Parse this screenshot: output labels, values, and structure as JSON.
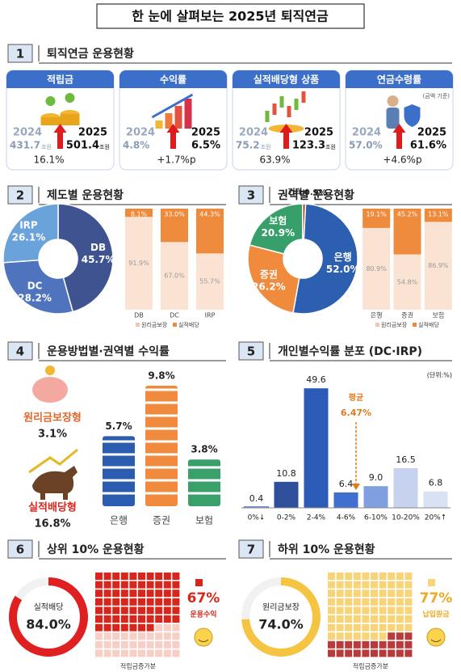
{
  "title": "한 눈에 살펴보는 2025년 퇴직연금",
  "sections": [
    {
      "number": "1",
      "heading": "퇴직연금 운용현황"
    },
    {
      "number": "2",
      "heading": "제도별 운용현황"
    },
    {
      "number": "3",
      "heading": "권역별 운용현황"
    },
    {
      "number": "4",
      "heading": "운용방법별·권역별 수익률"
    },
    {
      "number": "5",
      "heading": "개인별수익률 분포 (DC·IRP)"
    },
    {
      "number": "6",
      "heading": "상위 10% 운용현황"
    },
    {
      "number": "7",
      "heading": "하위 10% 운용현황"
    }
  ],
  "cards": [
    {
      "title": "적립금",
      "year_a": "2024",
      "value_a": "431.7",
      "unit_a": "조원",
      "year_b": "2025",
      "value_b": "501.4",
      "unit_b": "조원",
      "change": "16.1%"
    },
    {
      "title": "수익률",
      "year_a": "2024",
      "value_a": "4.8%",
      "year_b": "2025",
      "value_b": "6.5%",
      "change": "+1.7%p"
    },
    {
      "title": "실적배당형 상품",
      "year_a": "2024",
      "value_a": "75.2",
      "unit_a": "조원",
      "year_b": "2025",
      "value_b": "123.3",
      "unit_b": "조원",
      "change": "63.9%"
    },
    {
      "title": "연금수령률",
      "note": "(금액 기준)",
      "year_a": "2024",
      "value_a": "57.0%",
      "year_b": "2025",
      "value_b": "61.6%",
      "change": "+4.6%p"
    }
  ],
  "chart_data": [
    {
      "type": "pie",
      "categories": [
        "DB",
        "DC",
        "IRP"
      ],
      "values": [
        45.7,
        28.2,
        26.1
      ],
      "value_labels": [
        "45.7%",
        "28.2%",
        "26.1%"
      ],
      "colors": [
        "#3f5391",
        "#4f74bd",
        "#6aa2dc"
      ]
    },
    {
      "type": "stacked_bar",
      "categories": [
        "DB",
        "DC",
        "IRP"
      ],
      "series": [
        {
          "name": "원리금보장",
          "color": "#fbe3d4",
          "values": [
            91.9,
            67.0,
            55.7
          ],
          "value_labels": [
            "91.9%",
            "67.0%",
            "55.7%"
          ]
        },
        {
          "name": "실적배당",
          "color": "#ee8a3c",
          "values": [
            8.1,
            33.0,
            44.3
          ],
          "value_labels": [
            "8.1%",
            "33.0%",
            "44.3%"
          ]
        }
      ]
    },
    {
      "type": "pie",
      "categories": [
        "은행",
        "증권",
        "보험",
        "기타"
      ],
      "values": [
        52.0,
        26.2,
        20.9,
        0.9
      ],
      "value_labels": [
        "52.0%",
        "26.2%",
        "20.9%",
        "0.9%"
      ],
      "colors": [
        "#2d5fb0",
        "#f08a3c",
        "#37a06a",
        "#a0522d"
      ]
    },
    {
      "type": "stacked_bar",
      "categories": [
        "은행",
        "증권",
        "보험"
      ],
      "series": [
        {
          "name": "원리금보장",
          "color": "#fbe3d4",
          "values": [
            80.9,
            54.8,
            86.9
          ],
          "value_labels": [
            "80.9%",
            "54.8%",
            "86.9%"
          ]
        },
        {
          "name": "실적배당",
          "color": "#ee8a3c",
          "values": [
            19.1,
            45.2,
            13.1
          ],
          "value_labels": [
            "19.1%",
            "45.2%",
            "13.1%"
          ]
        }
      ]
    },
    {
      "type": "block_bar",
      "categories": [
        "은행",
        "증권",
        "보험"
      ],
      "values": [
        5.7,
        9.8,
        3.8
      ],
      "value_labels": [
        "5.7%",
        "9.8%",
        "3.8%"
      ],
      "colors": [
        "#2a5db0",
        "#f08a3c",
        "#3aa06a"
      ],
      "annotations": [
        {
          "label": "원리금보장형",
          "value_label": "3.1%"
        },
        {
          "label": "실적배당형",
          "value_label": "16.8%"
        }
      ]
    },
    {
      "type": "bar",
      "unit": "(단위:%)",
      "categories": [
        "0%↓",
        "0-2%",
        "2-4%",
        "4-6%",
        "6-10%",
        "10-20%",
        "20%↑"
      ],
      "values": [
        0.4,
        10.8,
        49.6,
        6.4,
        9.0,
        16.5,
        6.8
      ],
      "value_labels": [
        "0.4",
        "10.8",
        "49.6",
        "6.4",
        "9.0",
        "16.5",
        "6.8"
      ],
      "colors": [
        "#e8eefa",
        "#2e4f9a",
        "#2c5bb7",
        "#3f6fcf",
        "#7f9fe0",
        "#c6d2ee",
        "#d9e1f5"
      ],
      "annotation": {
        "label": "평균",
        "value_label": "6.47%"
      }
    },
    {
      "type": "gauge",
      "label": "실적배당",
      "value": 84.0,
      "value_label": "84.0%",
      "color": "#e02020"
    },
    {
      "type": "waffle",
      "value": 67,
      "value_label": "67%",
      "label": "운용수익",
      "caption": "적립금증가분",
      "color": "#d9261c",
      "rest_color": "#f6cfc6"
    },
    {
      "type": "gauge",
      "label": "원리금보장",
      "value": 74.0,
      "value_label": "74.0%",
      "color": "#f5c542"
    },
    {
      "type": "waffle",
      "value": 77,
      "value_label": "77%",
      "label": "납입원금",
      "caption": "적립금증가분",
      "color": "#f7d478",
      "rest_color": "#b83a3a"
    }
  ]
}
